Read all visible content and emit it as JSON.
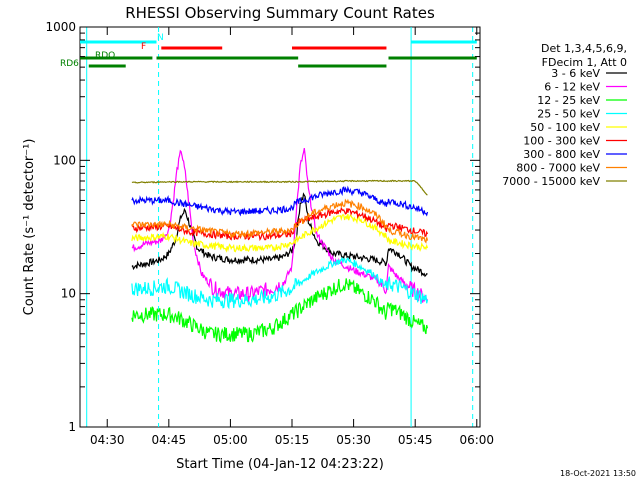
{
  "chart_data": {
    "type": "line",
    "title": "RHESSI Observing Summary Count Rates",
    "xlabel": "Start Time (04-Jan-12 04:23:22)",
    "ylabel": "Count Rate (s⁻¹ detector⁻¹)",
    "y_scale": "log",
    "xlim": [
      "04:23:22",
      "06:00:47"
    ],
    "ylim": [
      1,
      1000
    ],
    "x_ticks": [
      "04:30",
      "04:45",
      "05:00",
      "05:15",
      "05:30",
      "05:45",
      "06:00"
    ],
    "y_ticks": [
      "1",
      "10",
      "100",
      "1000"
    ],
    "legend_header": [
      "Det 1,3,4,5,6,9,",
      "FDecim 1, Att 0"
    ],
    "legend_position": "right",
    "footer_date": "18-Oct-2021 13:50",
    "flags": [
      {
        "label": "N",
        "color": "#00ffff",
        "segments": [
          [
            "04:23:22",
            "04:42:00"
          ],
          [
            "05:44:00",
            "06:00:00"
          ]
        ]
      },
      {
        "label": "F",
        "color": "#ff0000",
        "segments": [
          [
            "04:43:10",
            "04:58:00"
          ],
          [
            "05:15:00",
            "05:38:00"
          ]
        ]
      },
      {
        "label": "RDO",
        "color": "#008000",
        "segments": [
          [
            "04:23:22",
            "04:41:00"
          ],
          [
            "04:42:00",
            "05:16:30"
          ],
          [
            "05:38:30",
            "06:00:00"
          ]
        ]
      },
      {
        "label": "RD6",
        "color": "#008000",
        "segments": [
          [
            "04:25:30",
            "04:34:30"
          ],
          [
            "05:16:30",
            "05:38:00"
          ]
        ]
      }
    ],
    "vlines": [
      {
        "time": "04:25:00",
        "color": "#00ffff",
        "style": "solid"
      },
      {
        "time": "04:42:30",
        "color": "#00ffff",
        "style": "dashed"
      },
      {
        "time": "05:44:00",
        "color": "#00ffff",
        "style": "solid"
      },
      {
        "time": "05:59:00",
        "color": "#00ffff",
        "style": "dashed"
      }
    ],
    "series": [
      {
        "name": "3 - 6 keV",
        "color": "#000000",
        "x": [
          "04:36:00",
          "04:40:00",
          "04:43:00",
          "04:45:00",
          "04:46:30",
          "04:48:00",
          "04:49:00",
          "04:50:30",
          "04:52:00",
          "04:55:00",
          "05:00:00",
          "05:05:00",
          "05:10:00",
          "05:13:00",
          "05:15:00",
          "05:16:00",
          "05:17:00",
          "05:18:00",
          "05:19:00",
          "05:21:00",
          "05:25:00",
          "05:30:00",
          "05:35:00",
          "05:38:00",
          "05:38:30",
          "05:41:00",
          "05:44:00",
          "05:46:00",
          "05:48:00"
        ],
        "y": [
          16,
          17,
          18,
          20,
          25,
          38,
          42,
          30,
          22,
          19,
          18,
          18,
          18,
          19,
          21,
          26,
          48,
          56,
          35,
          25,
          20,
          19,
          18,
          17,
          22,
          20,
          16,
          15,
          14
        ]
      },
      {
        "name": "6 - 12 keV",
        "color": "#ff00ff",
        "x": [
          "04:36:00",
          "04:40:00",
          "04:43:00",
          "04:45:00",
          "04:46:00",
          "04:47:00",
          "04:48:00",
          "04:49:00",
          "04:50:00",
          "04:51:00",
          "04:53:00",
          "04:56:00",
          "05:00:00",
          "05:05:00",
          "05:10:00",
          "05:13:00",
          "05:15:00",
          "05:16:00",
          "05:17:00",
          "05:18:00",
          "05:19:00",
          "05:21:00",
          "05:25:00",
          "05:30:00",
          "05:35:00",
          "05:38:00",
          "05:38:30",
          "05:41:00",
          "05:44:00",
          "05:46:00",
          "05:48:00"
        ],
        "y": [
          22,
          24,
          25,
          30,
          48,
          85,
          120,
          80,
          45,
          24,
          14,
          11,
          10,
          10,
          11,
          12,
          16,
          40,
          90,
          120,
          60,
          28,
          18,
          15,
          13,
          11,
          16,
          13,
          11,
          10,
          9
        ]
      },
      {
        "name": "12 - 25 keV",
        "color": "#00ff00",
        "x": [
          "04:36:00",
          "04:40:00",
          "04:45:00",
          "04:48:00",
          "04:50:00",
          "04:55:00",
          "05:00:00",
          "05:05:00",
          "05:10:00",
          "05:15:00",
          "05:20:00",
          "05:25:00",
          "05:28:00",
          "05:30:00",
          "05:35:00",
          "05:38:00",
          "05:38:30",
          "05:42:00",
          "05:45:00",
          "05:48:00"
        ],
        "y": [
          7,
          7,
          7,
          6.5,
          6,
          5,
          5,
          5,
          5.5,
          7,
          9,
          11,
          12,
          11,
          9,
          7,
          8,
          7,
          6,
          5.5
        ]
      },
      {
        "name": "25 - 50 keV",
        "color": "#00ffff",
        "x": [
          "04:36:00",
          "04:40:00",
          "04:45:00",
          "04:48:00",
          "04:50:00",
          "04:55:00",
          "05:00:00",
          "05:05:00",
          "05:10:00",
          "05:15:00",
          "05:20:00",
          "05:25:00",
          "05:28:00",
          "05:30:00",
          "05:35:00",
          "05:38:00",
          "05:38:30",
          "05:42:00",
          "05:45:00",
          "05:48:00"
        ],
        "y": [
          11,
          11,
          11.5,
          10.5,
          10,
          9,
          9,
          9,
          9.5,
          11,
          14,
          17,
          18,
          17,
          14,
          11,
          12,
          11,
          10,
          9
        ]
      },
      {
        "name": "50 - 100 keV",
        "color": "#ffff00",
        "x": [
          "04:36:00",
          "04:45:00",
          "04:50:00",
          "05:00:00",
          "05:10:00",
          "05:15:00",
          "05:20:00",
          "05:25:00",
          "05:28:00",
          "05:32:00",
          "05:36:00",
          "05:38:00",
          "05:38:30",
          "05:44:00",
          "05:48:00"
        ],
        "y": [
          26,
          27,
          24,
          22,
          22,
          24,
          30,
          36,
          38,
          36,
          30,
          27,
          25,
          23,
          22
        ]
      },
      {
        "name": "100 - 300 keV",
        "color": "#ff0000",
        "x": [
          "04:36:00",
          "04:45:00",
          "04:50:00",
          "05:00:00",
          "05:10:00",
          "05:15:00",
          "05:16:00",
          "05:20:00",
          "05:25:00",
          "05:28:00",
          "05:32:00",
          "05:36:00",
          "05:38:00",
          "05:38:30",
          "05:44:00",
          "05:48:00"
        ],
        "y": [
          31,
          32,
          29,
          27,
          27,
          28,
          34,
          37,
          41,
          42,
          39,
          34,
          30,
          33,
          30,
          28
        ]
      },
      {
        "name": "300 - 800 keV",
        "color": "#0000ff",
        "x": [
          "04:36:00",
          "04:45:00",
          "04:50:00",
          "05:00:00",
          "05:10:00",
          "05:15:00",
          "05:16:00",
          "05:20:00",
          "05:25:00",
          "05:28:00",
          "05:32:00",
          "05:36:00",
          "05:38:00",
          "05:38:30",
          "05:44:00",
          "05:48:00"
        ],
        "y": [
          50,
          50,
          46,
          41,
          42,
          44,
          48,
          53,
          58,
          60,
          57,
          50,
          46,
          50,
          45,
          41
        ]
      },
      {
        "name": "800 - 7000 keV",
        "color": "#ff8000",
        "x": [
          "04:36:00",
          "04:45:00",
          "04:50:00",
          "05:00:00",
          "05:10:00",
          "05:15:00",
          "05:16:00",
          "05:20:00",
          "05:25:00",
          "05:28:00",
          "05:32:00",
          "05:36:00",
          "05:38:00",
          "05:38:30",
          "05:44:00",
          "05:48:00"
        ],
        "y": [
          33,
          33,
          31,
          28,
          29,
          30,
          33,
          40,
          46,
          48,
          45,
          38,
          32,
          30,
          27,
          25
        ]
      },
      {
        "name": "7000 - 15000 keV",
        "color": "#808000",
        "x": [
          "04:36:00",
          "04:45:00",
          "05:00:00",
          "05:15:00",
          "05:30:00",
          "05:45:00",
          "05:48:00"
        ],
        "y": [
          68,
          69,
          69,
          69,
          70,
          70,
          55
        ]
      }
    ]
  }
}
